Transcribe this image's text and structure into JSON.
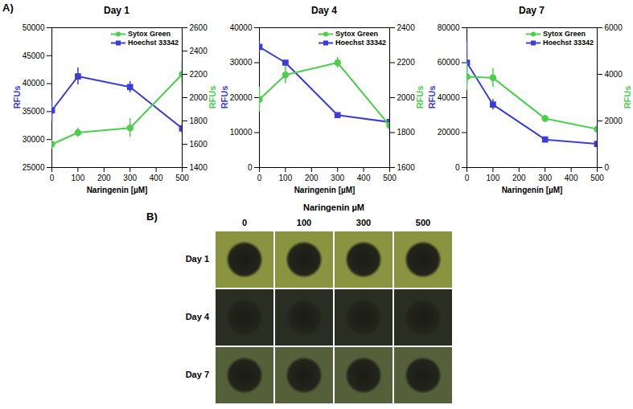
{
  "panel_label": "A)",
  "chart_data": [
    {
      "type": "line",
      "title": "Day 1",
      "x_label": "Naringenin [µM]",
      "y_label": "RFUs",
      "y2_label": "RFUs",
      "x": [
        0,
        100,
        300,
        500
      ],
      "xlim": [
        0,
        500
      ],
      "xticks": [
        0,
        100,
        200,
        300,
        400,
        500
      ],
      "ylim": [
        25000,
        50000
      ],
      "yticks": [
        25000,
        30000,
        35000,
        40000,
        45000,
        50000
      ],
      "y2lim": [
        1400,
        2600
      ],
      "y2ticks": [
        1400,
        1600,
        1800,
        2000,
        2200,
        2400,
        2600
      ],
      "legend": "top right",
      "series": [
        {
          "name": "Sytox Green",
          "color": "#4ccf4c",
          "marker": "circle",
          "axis": "y2",
          "values": [
            1600,
            1700,
            1740,
            2200
          ],
          "errors": [
            40,
            40,
            80,
            100
          ]
        },
        {
          "name": "Hoechst 33342",
          "color": "#3d3dd6",
          "marker": "square",
          "values": [
            35200,
            41300,
            39400,
            32000
          ],
          "errors": [
            2000,
            1500,
            1000,
            1000
          ]
        }
      ]
    },
    {
      "type": "line",
      "title": "Day 4",
      "x_label": "Naringenin [µM]",
      "y_label": "RFUs",
      "y2_label": "RFUs",
      "x": [
        0,
        100,
        300,
        500
      ],
      "xlim": [
        0,
        500
      ],
      "xticks": [
        0,
        100,
        200,
        300,
        400,
        500
      ],
      "ylim": [
        0,
        40000
      ],
      "yticks": [
        0,
        10000,
        20000,
        30000,
        40000
      ],
      "y2lim": [
        1600,
        2400
      ],
      "y2ticks": [
        1600,
        1800,
        2000,
        2200,
        2400
      ],
      "legend": "top right",
      "series": [
        {
          "name": "Sytox Green",
          "color": "#4ccf4c",
          "marker": "circle",
          "axis": "y2",
          "values": [
            1990,
            2130,
            2200,
            1840
          ],
          "errors": [
            70,
            50,
            30,
            70
          ]
        },
        {
          "name": "Hoechst 33342",
          "color": "#3d3dd6",
          "marker": "square",
          "values": [
            34500,
            30000,
            15000,
            13000
          ],
          "errors": [
            1500,
            300,
            300,
            300
          ]
        }
      ]
    },
    {
      "type": "line",
      "title": "Day 7",
      "x_label": "Naringenin [µM]",
      "y_label": "RFUs",
      "y2_label": "RFUs",
      "x": [
        0,
        100,
        300,
        500
      ],
      "xlim": [
        0,
        500
      ],
      "xticks": [
        0,
        100,
        200,
        300,
        400,
        500
      ],
      "ylim": [
        0,
        80000
      ],
      "yticks": [
        0,
        20000,
        40000,
        60000,
        80000
      ],
      "y2lim": [
        0,
        6000
      ],
      "y2ticks": [
        0,
        2000,
        4000,
        6000
      ],
      "legend": "top right",
      "series": [
        {
          "name": "Sytox Green",
          "color": "#4ccf4c",
          "marker": "circle",
          "axis": "y2",
          "values": [
            3900,
            3850,
            2100,
            1650
          ],
          "errors": [
            600,
            400,
            150,
            100
          ]
        },
        {
          "name": "Hoechst 33342",
          "color": "#3d3dd6",
          "marker": "square",
          "values": [
            60000,
            36000,
            16000,
            13500
          ],
          "errors": [
            12000,
            3000,
            800,
            800
          ]
        }
      ]
    }
  ],
  "image_panel": {
    "label": "B)",
    "column_title": "Naringenin µM",
    "columns": [
      "0",
      "100",
      "300",
      "500"
    ],
    "rows": [
      "Day 1",
      "Day 4",
      "Day 7"
    ]
  }
}
